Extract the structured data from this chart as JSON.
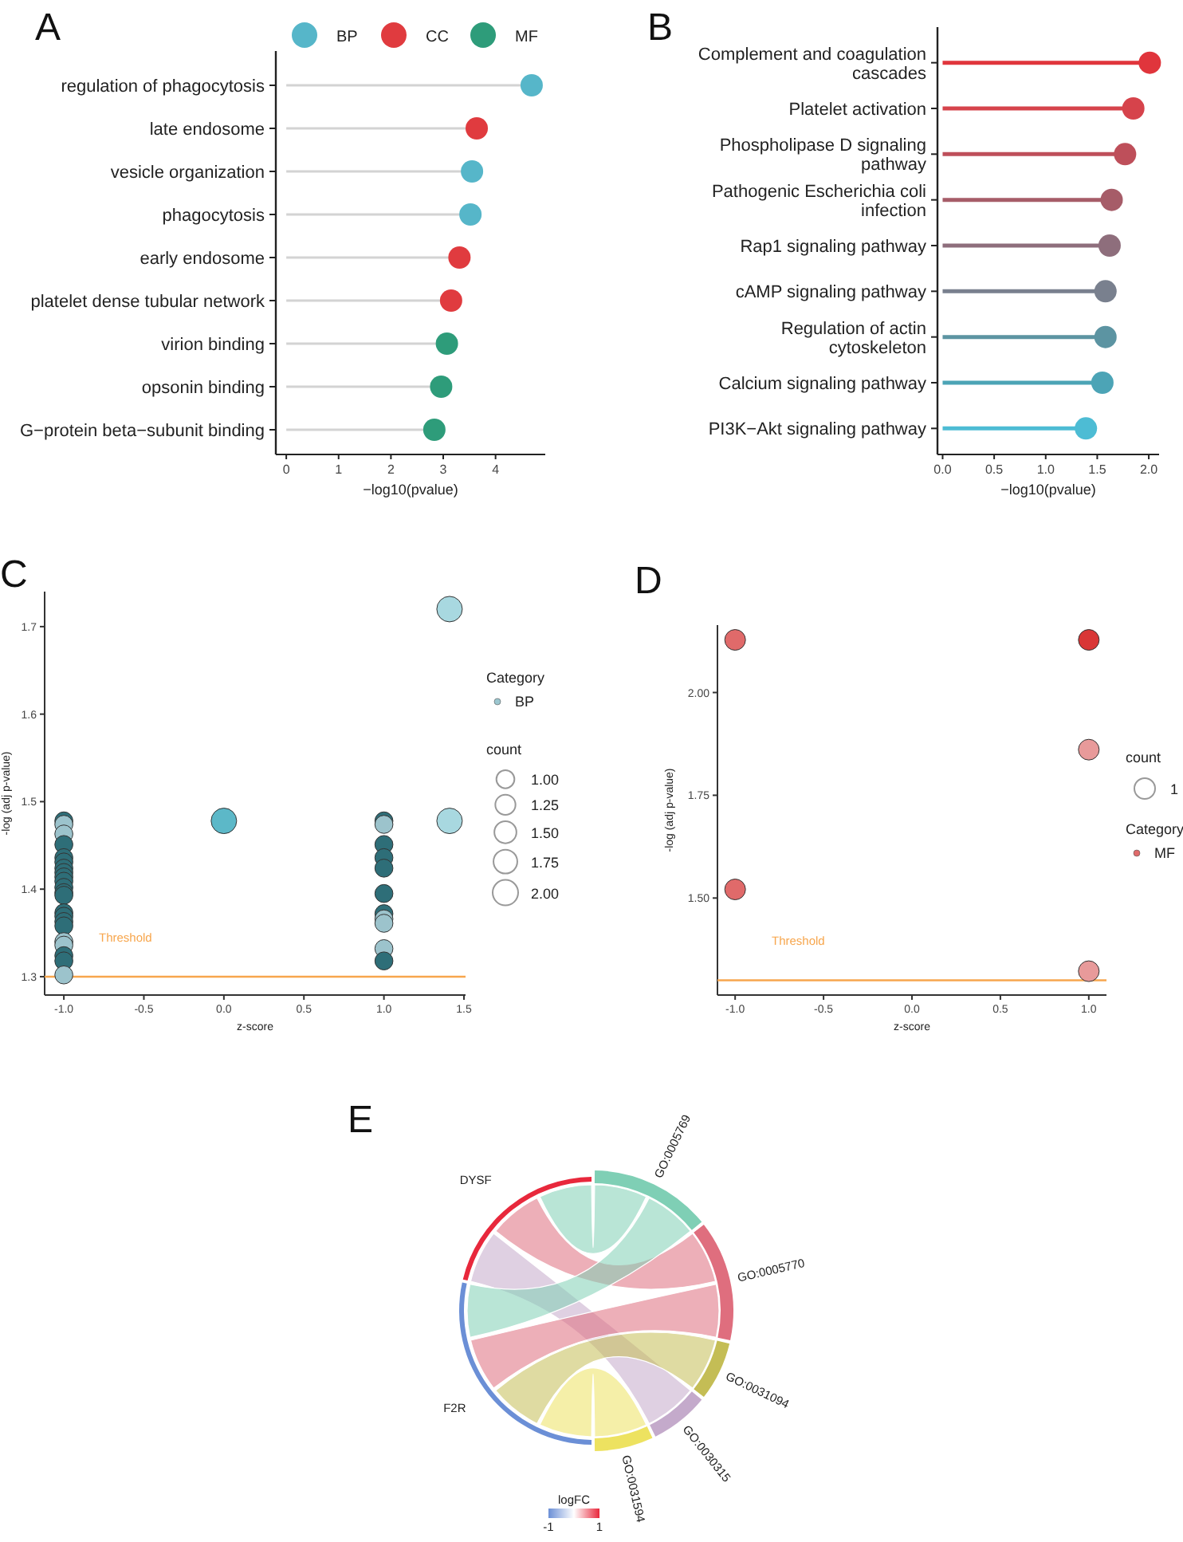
{
  "chart_data": [
    {
      "type": "lollipop",
      "title": "A",
      "orientation": "horizontal",
      "categories": [
        "regulation of phagocytosis",
        "late endosome",
        "vesicle organization",
        "phagocytosis",
        "early endosome",
        "platelet dense tubular network",
        "virion binding",
        "opsonin binding",
        "G−protein beta−subunit binding"
      ],
      "series": [
        {
          "name": "BP",
          "color": "#56b6c9",
          "values": [
            4.69,
            null,
            3.55,
            3.52,
            null,
            null,
            null,
            null,
            null
          ]
        },
        {
          "name": "CC",
          "color": "#e03b3f",
          "values": [
            null,
            3.64,
            null,
            null,
            3.31,
            3.15,
            null,
            null,
            null
          ]
        },
        {
          "name": "MF",
          "color": "#2e9c7a",
          "values": [
            null,
            null,
            null,
            null,
            null,
            null,
            3.07,
            2.96,
            2.83
          ]
        }
      ],
      "xlabel": "−log10(pvalue)",
      "xlim": [
        -0.2,
        4.95
      ],
      "xticks": [
        0,
        1,
        2,
        3,
        4
      ],
      "legend": "top"
    },
    {
      "type": "lollipop",
      "title": "B",
      "orientation": "horizontal",
      "categories": [
        "Complement and coagulation cascades",
        "Platelet activation",
        "Phospholipase D signaling pathway",
        "Pathogenic Escherichia coli infection",
        "Rap1 signaling pathway",
        "cAMP signaling pathway",
        "Regulation of actin cytoskeleton",
        "Calcium signaling pathway",
        "PI3K−Akt signaling pathway"
      ],
      "values": [
        2.01,
        1.85,
        1.77,
        1.64,
        1.62,
        1.58,
        1.58,
        1.55,
        1.39
      ],
      "colors": [
        "#e0353c",
        "#d6434b",
        "#be4f5a",
        "#a65c68",
        "#8e6e7c",
        "#79808e",
        "#5c94a2",
        "#4ca4b6",
        "#4dbcd4"
      ],
      "xlabel": "−log10(pvalue)",
      "xlim": [
        -0.05,
        2.1
      ],
      "xticks": [
        {
          "value": 0,
          "label": "0.0"
        },
        {
          "value": 0.5,
          "label": "0.5"
        },
        {
          "value": 1,
          "label": "1.0"
        },
        {
          "value": 1.5,
          "label": "1.5"
        },
        {
          "value": 2,
          "label": "2.0"
        }
      ]
    },
    {
      "type": "bubble",
      "title": "C",
      "series": [
        {
          "name": "BP",
          "color": "#9cc7d0",
          "x": [
            -1,
            -1,
            -1,
            -1,
            -1,
            -1,
            -1,
            -1,
            -1,
            -1,
            -1,
            -1,
            -1,
            -1,
            -1,
            -1,
            -1,
            -1,
            -1,
            -1,
            -1,
            -1,
            1,
            1,
            1,
            1,
            1,
            1,
            1,
            1,
            1,
            1,
            1,
            0,
            1.41,
            1.41
          ],
          "values": [
            1.478,
            1.474,
            1.463,
            1.451,
            1.436,
            1.431,
            1.424,
            1.419,
            1.414,
            1.409,
            1.402,
            1.396,
            1.393,
            1.373,
            1.369,
            1.363,
            1.358,
            1.34,
            1.336,
            1.324,
            1.318,
            1.302,
            1.478,
            1.474,
            1.451,
            1.436,
            1.424,
            1.395,
            1.372,
            1.366,
            1.361,
            1.332,
            1.318,
            1.478,
            1.72,
            1.478
          ],
          "sizes": [
            1,
            1,
            1,
            1,
            1,
            1,
            1,
            1,
            1,
            1,
            1,
            1,
            1,
            1,
            1,
            1,
            1,
            1,
            1,
            1,
            1,
            1,
            1,
            1,
            1,
            1,
            1,
            1,
            1,
            1,
            1,
            1,
            1,
            2,
            2,
            2
          ],
          "colors": [
            "#2e6e78",
            "#9cc3cc",
            "#9cc3cc",
            "#2e6e78",
            "#2e6e78",
            "#2e6e78",
            "#2e6e78",
            "#2e6e78",
            "#2e6e78",
            "#2e6e78",
            "#2e6e78",
            "#2e6e78",
            "#2e6e78",
            "#2e6e78",
            "#2e6e78",
            "#2e6e78",
            "#2e6e78",
            "#9cc3cc",
            "#9cc3cc",
            "#2e6e78",
            "#2e6e78",
            "#9cc3cc",
            "#2e6e78",
            "#9cc3cc",
            "#2e6e78",
            "#2e6e78",
            "#2e6e78",
            "#2e6e78",
            "#2e6e78",
            "#9cc3cc",
            "#9cc3cc",
            "#9cc3cc",
            "#2e6e78",
            "#5cb8c8",
            "#a8d8e0",
            "#a8d8e0"
          ]
        }
      ],
      "size_legend": [
        {
          "value": 1,
          "label": "1.00"
        },
        {
          "value": 1.25,
          "label": "1.25"
        },
        {
          "value": 1.5,
          "label": "1.50"
        },
        {
          "value": 1.75,
          "label": "1.75"
        },
        {
          "value": 2,
          "label": "2.00"
        }
      ],
      "legend": "right",
      "legend_title": "Category",
      "annotations": [
        "count"
      ],
      "xlabel": "z-score",
      "ylabel": "-log (adj p-value)",
      "xlim": [
        -1.12,
        1.51
      ],
      "ylim": [
        1.279,
        1.74
      ],
      "xticks": [
        {
          "value": -1,
          "label": "-1.0"
        },
        {
          "value": -0.5,
          "label": "-0.5"
        },
        {
          "value": 0,
          "label": "0.0"
        },
        {
          "value": 0.5,
          "label": "0.5"
        },
        {
          "value": 1,
          "label": "1.0"
        },
        {
          "value": 1.5,
          "label": "1.5"
        }
      ],
      "yticks": [
        1.3,
        1.4,
        1.5,
        1.6,
        1.7
      ],
      "ref_lines": [
        {
          "axis": "y",
          "value": 1.3,
          "label": "Threshold",
          "color": "#f7a64d"
        }
      ]
    },
    {
      "type": "bubble",
      "title": "D",
      "series": [
        {
          "name": "MF",
          "color": "#e06a6a",
          "x": [
            -1,
            1,
            1,
            -1,
            1
          ],
          "values": [
            2.128,
            2.128,
            1.861,
            1.521,
            1.322
          ],
          "sizes": [
            1,
            1,
            1,
            1,
            1
          ],
          "colors": [
            "#e06a6a",
            "#d93636",
            "#e89a9a",
            "#e06a6a",
            "#e89a9a"
          ]
        }
      ],
      "size_legend": [
        1
      ],
      "legend": "right",
      "legend_title": "Category",
      "annotations": [
        "count"
      ],
      "xlabel": "z-score",
      "ylabel": "-log (adj p-value)",
      "xlim": [
        -1.1,
        1.1
      ],
      "ylim": [
        1.264,
        2.164
      ],
      "xticks": [
        {
          "value": -1,
          "label": "-1.0"
        },
        {
          "value": -0.5,
          "label": "-0.5"
        },
        {
          "value": 0,
          "label": "0.0"
        },
        {
          "value": 0.5,
          "label": "0.5"
        },
        {
          "value": 1,
          "label": "1.0"
        }
      ],
      "yticks": [
        {
          "value": 1.5,
          "label": "1.50"
        },
        {
          "value": 1.75,
          "label": "1.75"
        },
        {
          "value": 2,
          "label": "2.00"
        }
      ],
      "ref_lines": [
        {
          "axis": "y",
          "value": 1.3,
          "label": "Threshold",
          "color": "#f7a64d"
        }
      ]
    },
    {
      "type": "other",
      "title": "E",
      "categories": [
        "GO:0005769",
        "GO:0005770",
        "GO:0031094",
        "GO:0030315",
        "GO:0031594"
      ],
      "colors": [
        "#7fcfb5",
        "#df6e7e",
        "#c4bd55",
        "#c4aacb",
        "#ede260"
      ],
      "y_categories": [
        "DYSF",
        "F2R"
      ],
      "clabel": "logFC",
      "annotations": [
        "-1",
        "1"
      ]
    }
  ]
}
